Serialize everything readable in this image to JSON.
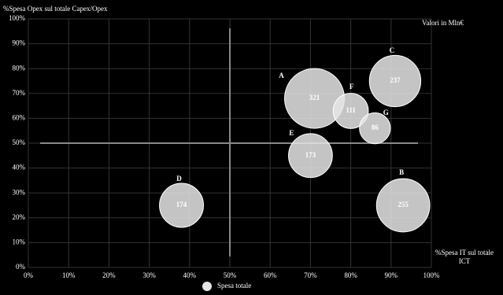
{
  "chart_data": {
    "type": "bubble",
    "y_label": "%Spesa Opex sul totale Capex/Opex",
    "x_label": "%Spesa IT sul totale ICT",
    "note": "Valori in Mln€",
    "xlim": [
      0,
      100
    ],
    "ylim": [
      0,
      100
    ],
    "xticks": [
      {
        "value": 0,
        "label": "0%"
      },
      {
        "value": 10,
        "label": "10%"
      },
      {
        "value": 20,
        "label": "20%"
      },
      {
        "value": 30,
        "label": "30%"
      },
      {
        "value": 40,
        "label": "40%"
      },
      {
        "value": 50,
        "label": "50%"
      },
      {
        "value": 60,
        "label": "60%"
      },
      {
        "value": 70,
        "label": "70%"
      },
      {
        "value": 80,
        "label": "80%"
      },
      {
        "value": 90,
        "label": "90%"
      },
      {
        "value": 100,
        "label": "100%"
      }
    ],
    "yticks": [
      {
        "value": 0,
        "label": "0%"
      },
      {
        "value": 10,
        "label": "10%"
      },
      {
        "value": 20,
        "label": "20%"
      },
      {
        "value": 30,
        "label": "30%"
      },
      {
        "value": 40,
        "label": "40%"
      },
      {
        "value": 50,
        "label": "50%"
      },
      {
        "value": 60,
        "label": "60%"
      },
      {
        "value": 70,
        "label": "70%"
      },
      {
        "value": 80,
        "label": "80%"
      },
      {
        "value": 90,
        "label": "90%"
      },
      {
        "value": 100,
        "label": "100%"
      }
    ],
    "grid": true,
    "reference_lines": {
      "x": 50,
      "y": 50
    },
    "series": [
      {
        "name": "Spesa totale",
        "color": "#e6e6e6",
        "point_labels": [
          "A",
          "C",
          "F",
          "G",
          "E",
          "D",
          "B"
        ],
        "x": [
          71,
          91,
          80,
          86,
          70,
          38,
          93
        ],
        "y": [
          68,
          75,
          63,
          56,
          45,
          25,
          25
        ],
        "sizes": [
          321,
          237,
          111,
          86,
          173,
          174,
          255
        ]
      }
    ]
  }
}
